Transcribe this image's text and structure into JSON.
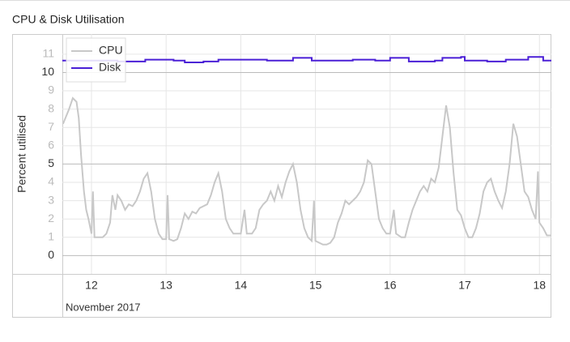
{
  "chart_data": {
    "type": "line",
    "title": "CPU & Disk Utilisation",
    "ylabel": "Percent utilised",
    "xlabel": "November 2017",
    "xlim": [
      11.61,
      18.16
    ],
    "xticks": [
      12,
      13,
      14,
      15,
      16,
      17,
      18
    ],
    "ylim": [
      -1,
      12.1
    ],
    "yticks": [
      0,
      1,
      2,
      3,
      4,
      5,
      6,
      7,
      8,
      9,
      10,
      11
    ],
    "major_tick_step": 5,
    "grid": true,
    "legend": "top-left",
    "series": [
      {
        "name": "CPU",
        "color": "#c8c8c8",
        "x": [
          11.62,
          11.65,
          11.7,
          11.75,
          11.8,
          11.83,
          11.86,
          11.9,
          11.93,
          11.96,
          12.0,
          12.02,
          12.04,
          12.1,
          12.15,
          12.2,
          12.25,
          12.28,
          12.32,
          12.35,
          12.4,
          12.45,
          12.5,
          12.55,
          12.6,
          12.65,
          12.7,
          12.75,
          12.8,
          12.85,
          12.9,
          12.95,
          13.0,
          13.02,
          13.04,
          13.1,
          13.15,
          13.2,
          13.25,
          13.3,
          13.35,
          13.4,
          13.45,
          13.5,
          13.55,
          13.6,
          13.65,
          13.7,
          13.75,
          13.8,
          13.85,
          13.9,
          13.95,
          14.0,
          14.05,
          14.08,
          14.15,
          14.2,
          14.25,
          14.3,
          14.35,
          14.4,
          14.45,
          14.5,
          14.55,
          14.6,
          14.65,
          14.7,
          14.75,
          14.8,
          14.85,
          14.9,
          14.95,
          14.98,
          15.0,
          15.1,
          15.15,
          15.2,
          15.25,
          15.3,
          15.35,
          15.4,
          15.45,
          15.5,
          15.55,
          15.6,
          15.65,
          15.7,
          15.75,
          15.8,
          15.85,
          15.9,
          15.95,
          16.0,
          16.05,
          16.08,
          16.15,
          16.2,
          16.25,
          16.3,
          16.35,
          16.4,
          16.45,
          16.5,
          16.55,
          16.6,
          16.65,
          16.7,
          16.75,
          16.8,
          16.85,
          16.9,
          16.95,
          17.0,
          17.05,
          17.1,
          17.15,
          17.2,
          17.25,
          17.3,
          17.35,
          17.4,
          17.45,
          17.5,
          17.55,
          17.6,
          17.65,
          17.7,
          17.75,
          17.8,
          17.85,
          17.9,
          17.95,
          17.98,
          18.0,
          18.05,
          18.1,
          18.15
        ],
        "values": [
          7.2,
          7.5,
          8.0,
          8.6,
          8.4,
          7.5,
          5.5,
          3.5,
          2.5,
          2.0,
          1.2,
          3.5,
          1.0,
          1.0,
          1.0,
          1.2,
          1.8,
          3.3,
          2.5,
          3.3,
          3.0,
          2.5,
          2.8,
          2.7,
          3.0,
          3.5,
          4.2,
          4.5,
          3.5,
          2.0,
          1.2,
          0.9,
          0.9,
          3.3,
          0.9,
          0.8,
          0.9,
          1.5,
          2.3,
          2.0,
          2.4,
          2.3,
          2.6,
          2.7,
          2.8,
          3.3,
          4.0,
          4.5,
          3.5,
          2.0,
          1.5,
          1.2,
          1.2,
          1.2,
          2.5,
          1.2,
          1.2,
          1.5,
          2.5,
          2.8,
          3.0,
          3.5,
          3.0,
          3.8,
          3.2,
          4.0,
          4.6,
          5.0,
          4.0,
          2.5,
          1.5,
          1.0,
          0.8,
          3.0,
          0.8,
          0.6,
          0.6,
          0.7,
          1.0,
          1.8,
          2.3,
          3.0,
          2.8,
          3.0,
          3.2,
          3.5,
          4.0,
          5.2,
          5.0,
          3.5,
          2.0,
          1.5,
          1.2,
          1.2,
          2.5,
          1.2,
          1.0,
          1.0,
          1.8,
          2.5,
          3.0,
          3.5,
          3.8,
          3.5,
          4.2,
          4.0,
          4.8,
          6.5,
          8.2,
          7.0,
          4.5,
          2.5,
          2.2,
          1.5,
          1.0,
          1.0,
          1.5,
          2.3,
          3.5,
          4.0,
          4.2,
          3.5,
          3.0,
          2.6,
          3.5,
          5.0,
          7.2,
          6.5,
          5.0,
          3.5,
          3.2,
          2.5,
          2.0,
          4.6,
          1.8,
          1.5,
          1.1,
          1.1
        ]
      },
      {
        "name": "Disk",
        "color": "#4a1fd6",
        "x": [
          11.61,
          12.35,
          12.35,
          12.72,
          12.72,
          13.1,
          13.1,
          13.25,
          13.25,
          13.5,
          13.5,
          13.7,
          13.7,
          14.35,
          14.35,
          14.7,
          14.7,
          14.95,
          14.95,
          15.5,
          15.5,
          15.8,
          15.8,
          16.0,
          16.0,
          16.25,
          16.25,
          16.6,
          16.6,
          16.7,
          16.7,
          16.95,
          16.95,
          17.0,
          17.0,
          17.3,
          17.3,
          17.55,
          17.55,
          17.85,
          17.85,
          18.05,
          18.05,
          18.16
        ],
        "values": [
          10.65,
          10.65,
          10.6,
          10.6,
          10.7,
          10.7,
          10.65,
          10.65,
          10.55,
          10.55,
          10.6,
          10.6,
          10.7,
          10.7,
          10.65,
          10.65,
          10.8,
          10.8,
          10.65,
          10.65,
          10.7,
          10.7,
          10.65,
          10.65,
          10.8,
          10.8,
          10.6,
          10.6,
          10.65,
          10.65,
          10.8,
          10.8,
          10.85,
          10.85,
          10.65,
          10.65,
          10.6,
          10.6,
          10.7,
          10.7,
          10.85,
          10.85,
          10.65,
          10.65
        ]
      }
    ]
  }
}
